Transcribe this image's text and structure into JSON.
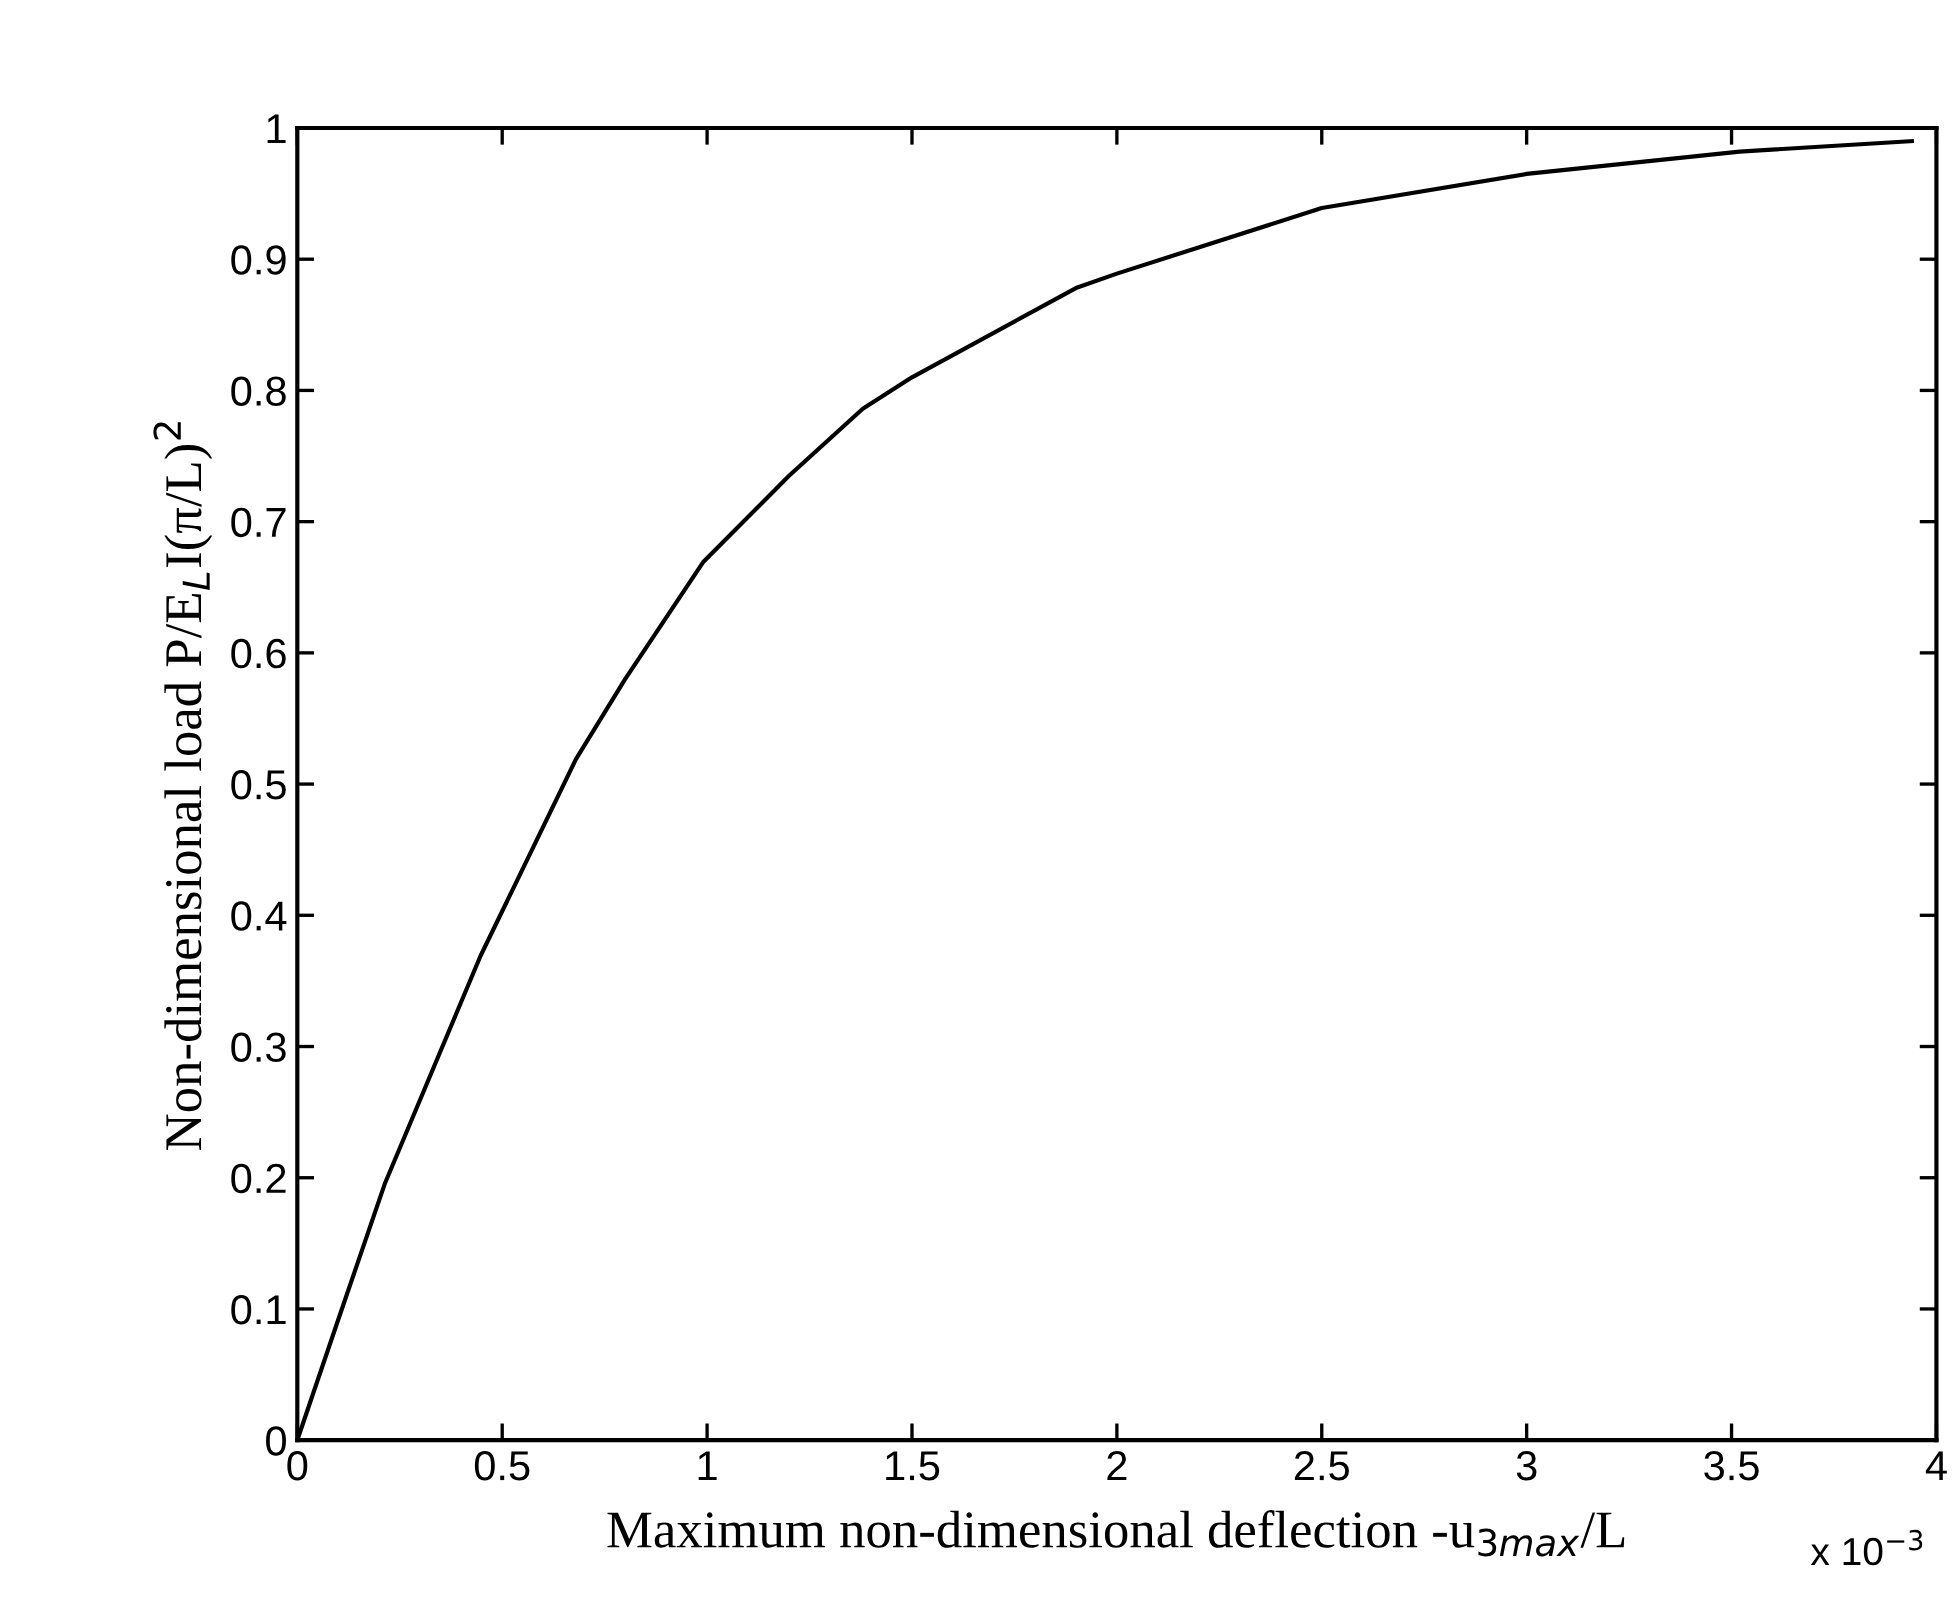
{
  "chart_data": {
    "type": "line",
    "xlabel": "Maximum non-dimensional deflection -u$_{3max}$/L",
    "ylabel": "Non-dimensional load P/E$_{L}$I(π/L)$^{2}$",
    "annotations": [
      "x 10$^{−3}$"
    ],
    "x": [
      0,
      0.1,
      0.213,
      0.447,
      0.68,
      0.8,
      0.99,
      1.2,
      1.38,
      1.5,
      1.9,
      2.0,
      2.5,
      3.0,
      3.52,
      3.94
    ],
    "series": [
      {
        "color": "#000000",
        "values": [
          0,
          0.092,
          0.195,
          0.369,
          0.519,
          0.58,
          0.669,
          0.735,
          0.786,
          0.81,
          0.878,
          0.889,
          0.939,
          0.965,
          0.982,
          0.99
        ]
      }
    ],
    "xlim": [
      0,
      4
    ],
    "ylim": [
      0,
      1
    ],
    "xticks": [
      0,
      0.5,
      1,
      1.5,
      2,
      2.5,
      3,
      3.5,
      4
    ],
    "yticks": [
      0,
      0.1,
      0.2,
      0.3,
      0.4,
      0.5,
      0.6,
      0.7,
      0.8,
      0.9,
      1
    ],
    "grid": false,
    "legend": false,
    "marker": "none",
    "line_style": "solid"
  }
}
